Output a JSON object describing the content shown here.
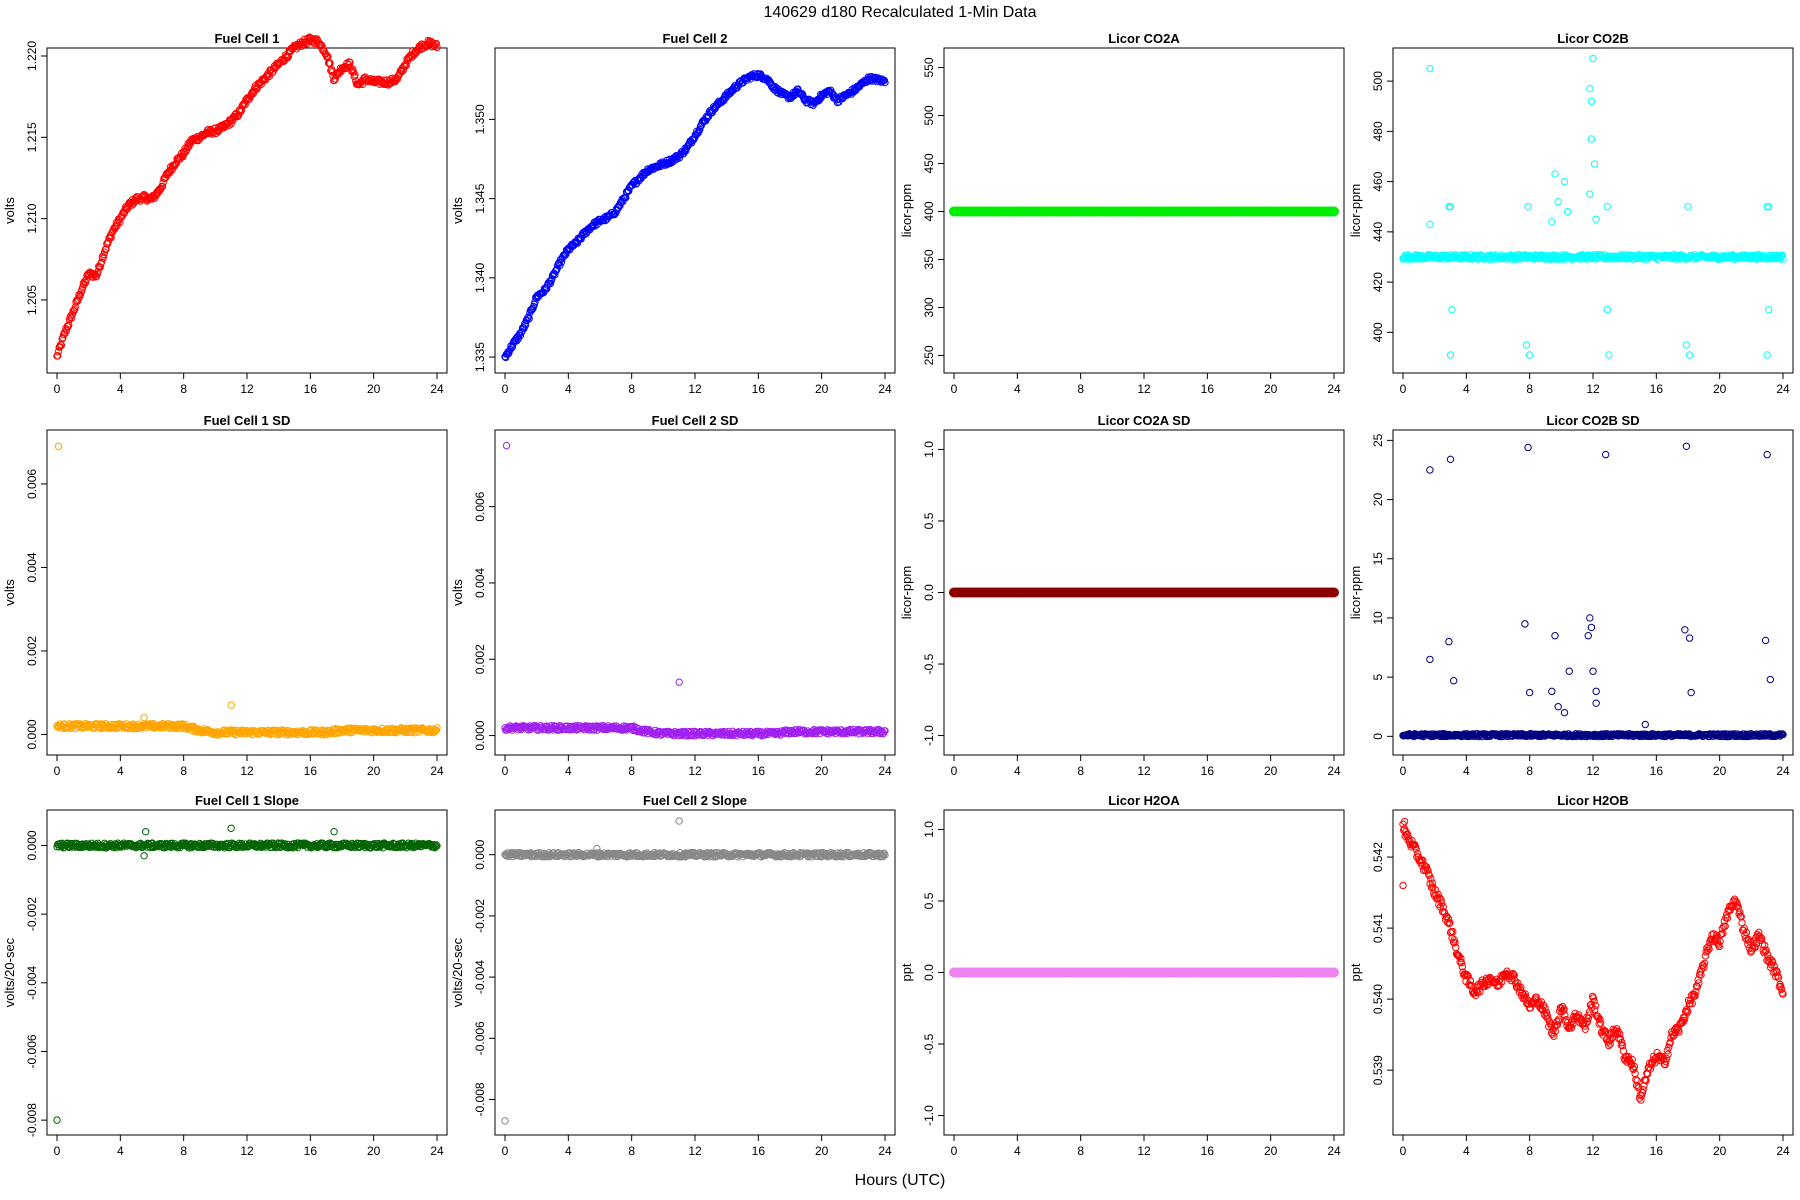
{
  "figure": {
    "title": "140629   d180   Recalculated 1-Min Data",
    "xlabel": "Hours (UTC)"
  },
  "chart_data": [
    {
      "id": "fc1",
      "title": "Fuel Cell 1",
      "type": "scatter",
      "ylabel": "volts",
      "color": "#ff0000",
      "xlim": [
        0,
        24
      ],
      "ylim": [
        1.201,
        1.22
      ],
      "xticks": [
        0,
        4,
        8,
        12,
        16,
        20,
        24
      ],
      "yticks": [
        1.205,
        1.21,
        1.215,
        1.22
      ],
      "ytick_labels": [
        "1.205",
        "1.210",
        "1.215",
        "1.220"
      ],
      "series": [
        {
          "x": [
            0,
            0.5,
            1,
            1.5,
            2,
            2.5,
            3,
            3.5,
            4,
            4.5,
            5,
            5.5,
            6,
            6.5,
            7,
            7.5,
            8,
            8.5,
            9,
            9.5,
            10,
            10.5,
            11,
            11.5,
            12,
            12.5,
            13,
            13.5,
            14,
            14.5,
            15,
            15.5,
            16,
            16.5,
            17,
            17.5,
            18,
            18.5,
            19,
            19.5,
            20,
            20.5,
            21,
            21.5,
            22,
            22.5,
            23,
            23.5,
            24
          ],
          "y": [
            1.2015,
            1.203,
            1.2042,
            1.2055,
            1.2066,
            1.2065,
            1.208,
            1.2092,
            1.21,
            1.2108,
            1.2112,
            1.2113,
            1.2112,
            1.2118,
            1.2128,
            1.2135,
            1.214,
            1.2148,
            1.215,
            1.2153,
            1.2154,
            1.2156,
            1.216,
            1.2165,
            1.2173,
            1.218,
            1.2185,
            1.219,
            1.2195,
            1.22,
            1.2205,
            1.2208,
            1.221,
            1.2209,
            1.2202,
            1.2186,
            1.2193,
            1.2195,
            1.2182,
            1.2186,
            1.2184,
            1.2184,
            1.2184,
            1.2186,
            1.2195,
            1.2202,
            1.2206,
            1.2208,
            1.2206
          ]
        }
      ],
      "outliers": []
    },
    {
      "id": "fc2",
      "title": "Fuel Cell 2",
      "type": "scatter",
      "ylabel": "volts",
      "color": "#0000ff",
      "xlim": [
        0,
        24
      ],
      "ylim": [
        1.3345,
        1.354
      ],
      "xticks": [
        0,
        4,
        8,
        12,
        16,
        20,
        24
      ],
      "yticks": [
        1.335,
        1.34,
        1.345,
        1.35
      ],
      "ytick_labels": [
        "1.335",
        "1.340",
        "1.345",
        "1.350"
      ],
      "series": [
        {
          "x": [
            0,
            0.5,
            1,
            1.5,
            2,
            2.5,
            3,
            3.5,
            4,
            4.5,
            5,
            5.5,
            6,
            6.5,
            7,
            7.5,
            8,
            8.5,
            9,
            9.5,
            10,
            10.5,
            11,
            11.5,
            12,
            12.5,
            13,
            13.5,
            14,
            14.5,
            15,
            15.5,
            16,
            16.5,
            17,
            17.5,
            18,
            18.5,
            19,
            19.5,
            20,
            20.5,
            21,
            21.5,
            22,
            22.5,
            23,
            23.5,
            24
          ],
          "y": [
            1.335,
            1.3358,
            1.3365,
            1.3375,
            1.3388,
            1.3392,
            1.34,
            1.341,
            1.3418,
            1.3422,
            1.3428,
            1.3433,
            1.3436,
            1.3438,
            1.3442,
            1.345,
            1.3458,
            1.3463,
            1.3468,
            1.347,
            1.3472,
            1.3474,
            1.3477,
            1.3482,
            1.349,
            1.3498,
            1.3505,
            1.351,
            1.3515,
            1.352,
            1.3524,
            1.3527,
            1.3528,
            1.3526,
            1.352,
            1.3516,
            1.3514,
            1.3518,
            1.3512,
            1.351,
            1.3515,
            1.3518,
            1.3512,
            1.3515,
            1.3518,
            1.3522,
            1.3526,
            1.3525,
            1.3524
          ]
        }
      ],
      "outliers": []
    },
    {
      "id": "co2a",
      "title": "Licor CO2A",
      "type": "scatter",
      "ylabel": "licor-ppm",
      "color": "#00ee00",
      "xlim": [
        0,
        24
      ],
      "ylim": [
        240,
        562
      ],
      "xticks": [
        0,
        4,
        8,
        12,
        16,
        20,
        24
      ],
      "yticks": [
        250,
        300,
        350,
        400,
        450,
        500,
        550
      ],
      "ytick_labels": [
        "250",
        "300",
        "350",
        "400",
        "450",
        "500",
        "550"
      ],
      "series": [
        {
          "x": [
            0,
            24
          ],
          "y": [
            400,
            400
          ]
        }
      ],
      "outliers": []
    },
    {
      "id": "co2b",
      "title": "Licor CO2B",
      "type": "scatter",
      "ylabel": "licor-ppm",
      "color": "#00ffff",
      "xlim": [
        0,
        24
      ],
      "ylim": [
        387,
        510
      ],
      "xticks": [
        0,
        4,
        8,
        12,
        16,
        20,
        24
      ],
      "yticks": [
        400,
        420,
        440,
        460,
        480,
        500
      ],
      "ytick_labels": [
        "400",
        "420",
        "440",
        "460",
        "480",
        "500"
      ],
      "series": [
        {
          "x": [
            0,
            24
          ],
          "y": [
            430,
            430
          ]
        }
      ],
      "outliers": [
        [
          1.7,
          505
        ],
        [
          1.7,
          443
        ],
        [
          2.9,
          450
        ],
        [
          3.0,
          450
        ],
        [
          3.1,
          409
        ],
        [
          3.0,
          391
        ],
        [
          7.8,
          395
        ],
        [
          7.9,
          450
        ],
        [
          8.0,
          391
        ],
        [
          9.4,
          444
        ],
        [
          9.6,
          463
        ],
        [
          9.8,
          452
        ],
        [
          10.2,
          460
        ],
        [
          10.4,
          448
        ],
        [
          11.8,
          497
        ],
        [
          11.9,
          492
        ],
        [
          12.0,
          509
        ],
        [
          11.9,
          477
        ],
        [
          12.1,
          467
        ],
        [
          11.8,
          455
        ],
        [
          12.2,
          445
        ],
        [
          12.9,
          450
        ],
        [
          12.9,
          409
        ],
        [
          13.0,
          391
        ],
        [
          17.9,
          395
        ],
        [
          18.0,
          450
        ],
        [
          18.1,
          391
        ],
        [
          23.0,
          450
        ],
        [
          23.1,
          409
        ],
        [
          23.0,
          391
        ],
        [
          23.1,
          450
        ]
      ]
    },
    {
      "id": "fc1sd",
      "title": "Fuel Cell 1 SD",
      "type": "scatter",
      "ylabel": "volts",
      "color": "#ffa500",
      "xlim": [
        0,
        24
      ],
      "ylim": [
        -0.0003,
        0.0071
      ],
      "xticks": [
        0,
        4,
        8,
        12,
        16,
        20,
        24
      ],
      "yticks": [
        0.0,
        0.002,
        0.004,
        0.006
      ],
      "ytick_labels": [
        "0.000",
        "0.002",
        "0.004",
        "0.006"
      ],
      "series": [
        {
          "x": [
            0,
            1,
            2,
            3,
            4,
            5,
            6,
            7,
            8,
            9,
            10,
            11,
            12,
            13,
            14,
            15,
            16,
            17,
            18,
            19,
            20,
            21,
            22,
            23,
            24
          ],
          "y": [
            0.0002,
            0.0002,
            0.0002,
            0.0002,
            0.0002,
            0.0002,
            0.0002,
            0.0002,
            0.0002,
            0.0001,
            5e-05,
            5e-05,
            5e-05,
            5e-05,
            5e-05,
            5e-05,
            5e-05,
            5e-05,
            0.0001,
            0.0001,
            0.0001,
            0.0001,
            0.0001,
            0.0001,
            0.0001
          ]
        }
      ],
      "outliers": [
        [
          0.1,
          0.0069
        ],
        [
          11,
          0.0007
        ],
        [
          5.5,
          0.0004
        ]
      ]
    },
    {
      "id": "fc2sd",
      "title": "Fuel Cell 2 SD",
      "type": "scatter",
      "ylabel": "volts",
      "color": "#a020f0",
      "xlim": [
        0,
        24
      ],
      "ylim": [
        -0.0003,
        0.0078
      ],
      "xticks": [
        0,
        4,
        8,
        12,
        16,
        20,
        24
      ],
      "yticks": [
        0.0,
        0.002,
        0.004,
        0.006
      ],
      "ytick_labels": [
        "0.000",
        "0.002",
        "0.004",
        "0.006"
      ],
      "series": [
        {
          "x": [
            0,
            1,
            2,
            3,
            4,
            5,
            6,
            7,
            8,
            9,
            10,
            11,
            12,
            13,
            14,
            15,
            16,
            17,
            18,
            19,
            20,
            21,
            22,
            23,
            24
          ],
          "y": [
            0.0002,
            0.0002,
            0.0002,
            0.0002,
            0.0002,
            0.0002,
            0.0002,
            0.0002,
            0.0002,
            0.0001,
            5e-05,
            5e-05,
            5e-05,
            5e-05,
            5e-05,
            5e-05,
            5e-05,
            5e-05,
            0.0001,
            0.0001,
            0.0001,
            0.0001,
            0.0001,
            0.0001,
            0.0001
          ]
        }
      ],
      "outliers": [
        [
          0.1,
          0.0076
        ],
        [
          11,
          0.0014
        ]
      ]
    },
    {
      "id": "co2asd",
      "title": "Licor CO2A SD",
      "type": "scatter",
      "ylabel": "licor-ppm",
      "color": "#8b0000",
      "xlim": [
        0,
        24
      ],
      "ylim": [
        -1.08,
        1.08
      ],
      "xticks": [
        0,
        4,
        8,
        12,
        16,
        20,
        24
      ],
      "yticks": [
        -1.0,
        -0.5,
        0.0,
        0.5,
        1.0
      ],
      "ytick_labels": [
        "-1.0",
        "-0.5",
        "0.0",
        "0.5",
        "1.0"
      ],
      "series": [
        {
          "x": [
            0,
            24
          ],
          "y": [
            0,
            0
          ]
        }
      ],
      "outliers": []
    },
    {
      "id": "co2bsd",
      "title": "Licor CO2B SD",
      "type": "scatter",
      "ylabel": "licor-ppm",
      "color": "#000080",
      "xlim": [
        0,
        24
      ],
      "ylim": [
        -0.9,
        25.2
      ],
      "xticks": [
        0,
        4,
        8,
        12,
        16,
        20,
        24
      ],
      "yticks": [
        0,
        5,
        10,
        15,
        20,
        25
      ],
      "ytick_labels": [
        "0",
        "5",
        "10",
        "15",
        "20",
        "25"
      ],
      "series": [
        {
          "x": [
            0,
            24
          ],
          "y": [
            0.1,
            0.1
          ]
        }
      ],
      "outliers": [
        [
          1.7,
          22.5
        ],
        [
          1.7,
          6.5
        ],
        [
          2.9,
          8
        ],
        [
          3.0,
          23.4
        ],
        [
          3.2,
          4.7
        ],
        [
          7.7,
          9.5
        ],
        [
          7.9,
          24.4
        ],
        [
          8.0,
          3.7
        ],
        [
          9.4,
          3.8
        ],
        [
          9.6,
          8.5
        ],
        [
          9.8,
          2.5
        ],
        [
          10.2,
          2.0
        ],
        [
          10.5,
          5.5
        ],
        [
          11.7,
          8.5
        ],
        [
          11.8,
          10
        ],
        [
          11.9,
          9.2
        ],
        [
          12.0,
          5.5
        ],
        [
          12.2,
          3.8
        ],
        [
          12.8,
          23.8
        ],
        [
          12.2,
          2.8
        ],
        [
          15.3,
          1.0
        ],
        [
          17.8,
          9.0
        ],
        [
          17.9,
          24.5
        ],
        [
          18.1,
          8.3
        ],
        [
          18.2,
          3.7
        ],
        [
          22.9,
          8.1
        ],
        [
          23.0,
          23.8
        ],
        [
          23.2,
          4.8
        ]
      ]
    },
    {
      "id": "fc1slope",
      "title": "Fuel Cell 1 Slope",
      "type": "scatter",
      "ylabel": "volts/20-sec",
      "color": "#006400",
      "xlim": [
        0,
        24
      ],
      "ylim": [
        -0.0082,
        0.0008
      ],
      "xticks": [
        0,
        4,
        8,
        12,
        16,
        20,
        24
      ],
      "yticks": [
        -0.008,
        -0.006,
        -0.004,
        -0.002,
        0.0
      ],
      "ytick_labels": [
        "-0.008",
        "-0.006",
        "-0.004",
        "-0.002",
        "0.000"
      ],
      "series": [
        {
          "x": [
            0,
            24
          ],
          "y": [
            0,
            0
          ]
        }
      ],
      "outliers": [
        [
          0.0,
          -0.008
        ],
        [
          11,
          0.0005
        ],
        [
          5.5,
          -0.0003
        ],
        [
          5.6,
          0.0004
        ],
        [
          17.5,
          0.0004
        ]
      ]
    },
    {
      "id": "fc2slope",
      "title": "Fuel Cell 2 Slope",
      "type": "scatter",
      "ylabel": "volts/20-sec",
      "color": "#888888",
      "xlim": [
        0,
        24
      ],
      "ylim": [
        -0.0089,
        0.0012
      ],
      "xticks": [
        0,
        4,
        8,
        12,
        16,
        20,
        24
      ],
      "yticks": [
        -0.008,
        -0.006,
        -0.004,
        -0.002,
        0.0
      ],
      "ytick_labels": [
        "-0.008",
        "-0.006",
        "-0.004",
        "-0.002",
        "0.000"
      ],
      "series": [
        {
          "x": [
            0,
            24
          ],
          "y": [
            0,
            0
          ]
        }
      ],
      "outliers": [
        [
          0.0,
          -0.0087
        ],
        [
          11,
          0.0011
        ],
        [
          5.8,
          0.0002
        ]
      ]
    },
    {
      "id": "h2oa",
      "title": "Licor H2OA",
      "type": "scatter",
      "ylabel": "ppt",
      "color": "#ee82ee",
      "xlim": [
        0,
        24
      ],
      "ylim": [
        -1.08,
        1.08
      ],
      "xticks": [
        0,
        4,
        8,
        12,
        16,
        20,
        24
      ],
      "yticks": [
        -1.0,
        -0.5,
        0.0,
        0.5,
        1.0
      ],
      "ytick_labels": [
        "-1.0",
        "-0.5",
        "0.0",
        "0.5",
        "1.0"
      ],
      "series": [
        {
          "x": [
            0,
            24
          ],
          "y": [
            0,
            0
          ]
        }
      ],
      "outliers": []
    },
    {
      "id": "h2ob",
      "title": "Licor H2OB",
      "type": "scatter",
      "ylabel": "ppt",
      "color": "#ff0000",
      "xlim": [
        0,
        24
      ],
      "ylim": [
        0.5382,
        0.54255
      ],
      "xticks": [
        0,
        4,
        8,
        12,
        16,
        20,
        24
      ],
      "yticks": [
        0.539,
        0.54,
        0.541,
        0.542
      ],
      "ytick_labels": [
        "0.539",
        "0.540",
        "0.541",
        "0.542"
      ],
      "series": [
        {
          "x": [
            0,
            0.5,
            1,
            1.5,
            2,
            2.5,
            3,
            3.5,
            4,
            4.5,
            5,
            5.5,
            6,
            6.5,
            7,
            7.5,
            8,
            8.5,
            9,
            9.5,
            10,
            10.5,
            11,
            11.5,
            12,
            12.5,
            13,
            13.5,
            14,
            14.5,
            15,
            15.5,
            16,
            16.5,
            17,
            17.5,
            18,
            18.5,
            19,
            19.5,
            20,
            20.5,
            21,
            21.5,
            22,
            22.5,
            23,
            23.5,
            24
          ],
          "y": [
            0.5424,
            0.5422,
            0.542,
            0.5418,
            0.5415,
            0.5413,
            0.541,
            0.5406,
            0.5403,
            0.5401,
            0.5402,
            0.5403,
            0.5402,
            0.5404,
            0.5403,
            0.5401,
            0.5399,
            0.54,
            0.5398,
            0.5395,
            0.5399,
            0.5396,
            0.5398,
            0.5396,
            0.54,
            0.5396,
            0.5394,
            0.5396,
            0.5392,
            0.5391,
            0.5386,
            0.539,
            0.5392,
            0.5391,
            0.5395,
            0.5396,
            0.5399,
            0.5401,
            0.5405,
            0.5409,
            0.5408,
            0.5412,
            0.5414,
            0.541,
            0.5407,
            0.5409,
            0.5406,
            0.5404,
            0.5401
          ]
        }
      ],
      "outliers": [
        [
          0.0,
          0.5416
        ],
        [
          0.1,
          0.5425
        ]
      ]
    }
  ]
}
